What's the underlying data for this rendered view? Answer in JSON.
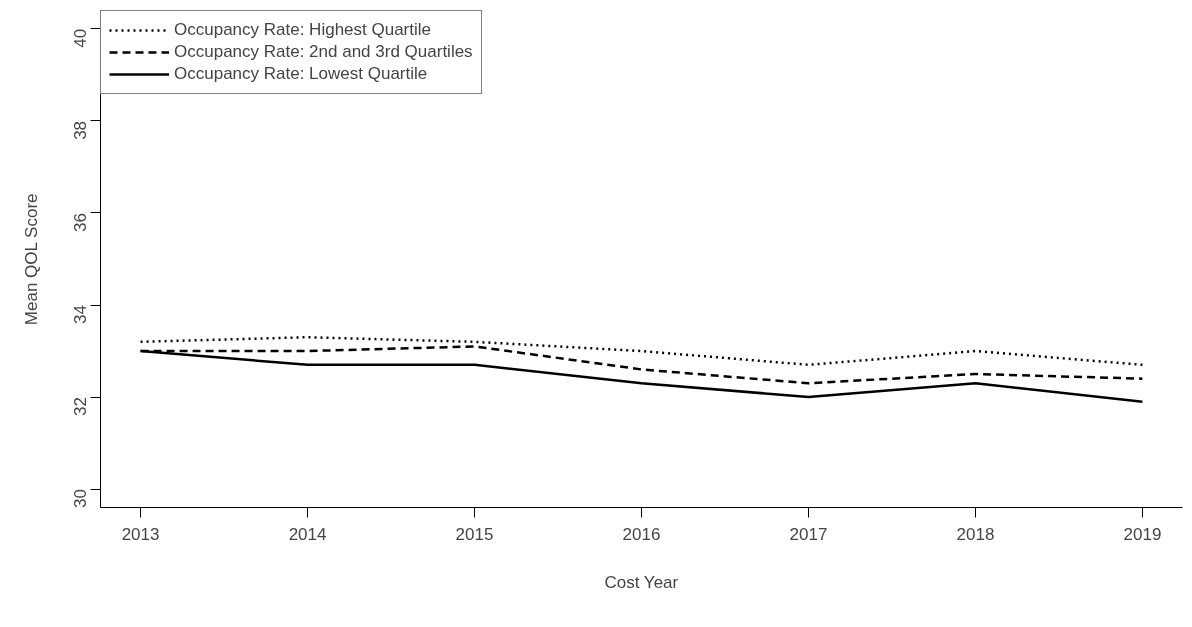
{
  "chart_data": {
    "type": "line",
    "xlabel": "Cost Year",
    "ylabel": "Mean QOL Score",
    "x": [
      2013,
      2014,
      2015,
      2016,
      2017,
      2018,
      2019
    ],
    "series": [
      {
        "name": "Occupancy Rate: Highest Quartile",
        "color": "#000000",
        "line_style": "dotted",
        "values": [
          33.2,
          33.3,
          33.2,
          33.0,
          32.7,
          33.0,
          32.7
        ]
      },
      {
        "name": "Occupancy Rate: 2nd and 3rd Quartiles",
        "color": "#000000",
        "line_style": "dashed",
        "values": [
          33.0,
          33.0,
          33.1,
          32.6,
          32.3,
          32.5,
          32.4
        ]
      },
      {
        "name": "Occupancy Rate: Lowest Quartile",
        "color": "#000000",
        "line_style": "solid",
        "values": [
          33.0,
          32.7,
          32.7,
          32.3,
          32.0,
          32.3,
          31.9
        ]
      }
    ],
    "xlim": [
      2012.76,
      2019.24
    ],
    "ylim": [
      29.6,
      40.4
    ],
    "xticks": [
      2013,
      2014,
      2015,
      2016,
      2017,
      2018,
      2019
    ],
    "yticks": [
      30,
      32,
      34,
      36,
      38,
      40
    ],
    "grid": false,
    "legend": "top left",
    "marker": "none"
  }
}
